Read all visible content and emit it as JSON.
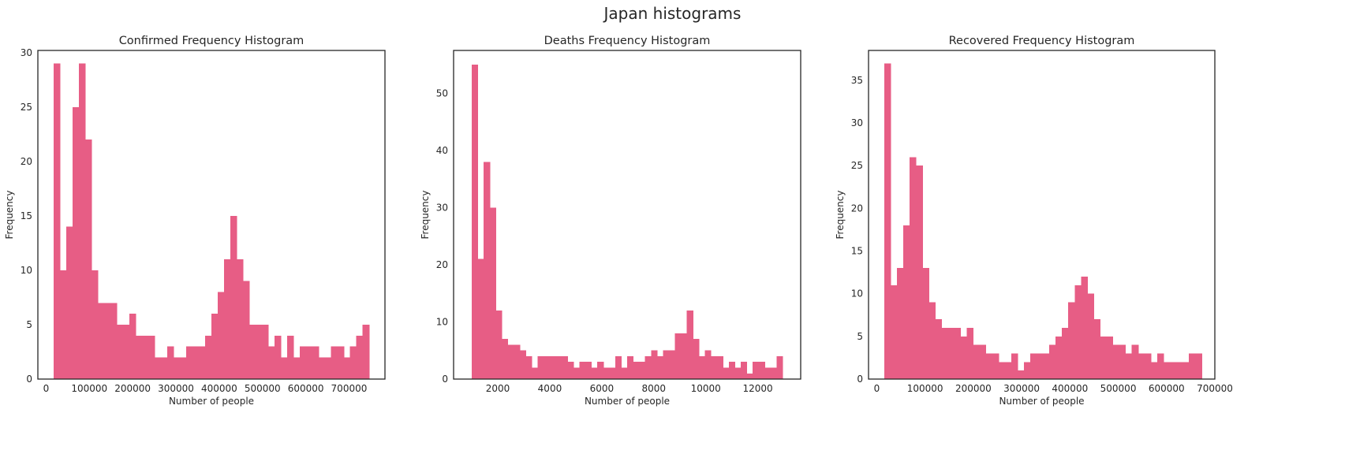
{
  "suptitle": "Japan histograms",
  "chart_data": [
    {
      "type": "bar",
      "title": "Confirmed Frequency Histogram",
      "xlabel": "Number of people",
      "ylabel": "Frequency",
      "bar_color": "#e75d85",
      "xlim": [
        -19000,
        783000
      ],
      "ylim": [
        0,
        30.2
      ],
      "xticks": [
        0,
        100000,
        200000,
        300000,
        400000,
        500000,
        600000,
        700000
      ],
      "xtick_labels": [
        "0",
        "100000",
        "200000",
        "300000",
        "400000",
        "500000",
        "600000",
        "700000"
      ],
      "yticks": [
        0,
        5,
        10,
        15,
        20,
        25,
        30
      ],
      "ytick_labels": [
        "0",
        "5",
        "10",
        "15",
        "20",
        "25",
        "30"
      ],
      "bin_start": 17500,
      "bin_end": 746000,
      "values": [
        29,
        10,
        14,
        25,
        29,
        22,
        10,
        7,
        7,
        7,
        5,
        5,
        6,
        4,
        4,
        4,
        2,
        2,
        3,
        2,
        2,
        3,
        3,
        3,
        4,
        6,
        8,
        11,
        15,
        11,
        9,
        5,
        5,
        5,
        3,
        4,
        2,
        4,
        2,
        3,
        3,
        3,
        2,
        2,
        3,
        3,
        2,
        3,
        4,
        5
      ]
    },
    {
      "type": "bar",
      "title": "Deaths Frequency Histogram",
      "xlabel": "Number of people",
      "ylabel": "Frequency",
      "bar_color": "#e75d85",
      "xlim": [
        300,
        13650
      ],
      "ylim": [
        0,
        57.5
      ],
      "xticks": [
        2000,
        4000,
        6000,
        8000,
        10000,
        12000
      ],
      "xtick_labels": [
        "2000",
        "4000",
        "6000",
        "8000",
        "10000",
        "12000"
      ],
      "yticks": [
        0,
        10,
        20,
        30,
        40,
        50
      ],
      "ytick_labels": [
        "0",
        "10",
        "20",
        "30",
        "40",
        "50"
      ],
      "bin_start": 1000,
      "bin_end": 12950,
      "values": [
        55,
        21,
        38,
        30,
        12,
        7,
        6,
        6,
        5,
        4,
        2,
        4,
        4,
        4,
        4,
        4,
        3,
        2,
        3,
        3,
        2,
        3,
        2,
        2,
        4,
        2,
        4,
        3,
        3,
        4,
        5,
        4,
        5,
        5,
        8,
        8,
        12,
        7,
        4,
        5,
        4,
        4,
        2,
        3,
        2,
        3,
        1,
        3,
        3,
        2,
        2,
        4
      ]
    },
    {
      "type": "bar",
      "title": "Recovered Frequency Histogram",
      "xlabel": "Number of people",
      "ylabel": "Frequency",
      "bar_color": "#e75d85",
      "xlim": [
        -17000,
        700000
      ],
      "ylim": [
        0,
        38.5
      ],
      "xticks": [
        0,
        100000,
        200000,
        300000,
        400000,
        500000,
        600000,
        700000
      ],
      "xtick_labels": [
        "0",
        "100000",
        "200000",
        "300000",
        "400000",
        "500000",
        "600000",
        "700000"
      ],
      "yticks": [
        0,
        5,
        10,
        15,
        20,
        25,
        30,
        35
      ],
      "ytick_labels": [
        "0",
        "5",
        "10",
        "15",
        "20",
        "25",
        "30",
        "35"
      ],
      "bin_start": 15500,
      "bin_end": 672500,
      "values": [
        37,
        11,
        13,
        18,
        26,
        25,
        13,
        9,
        7,
        6,
        6,
        6,
        5,
        6,
        4,
        4,
        3,
        3,
        2,
        2,
        3,
        1,
        2,
        3,
        3,
        3,
        4,
        5,
        6,
        9,
        11,
        12,
        10,
        7,
        5,
        5,
        4,
        4,
        3,
        4,
        3,
        3,
        2,
        3,
        2,
        2,
        2,
        2,
        3,
        3
      ]
    }
  ]
}
